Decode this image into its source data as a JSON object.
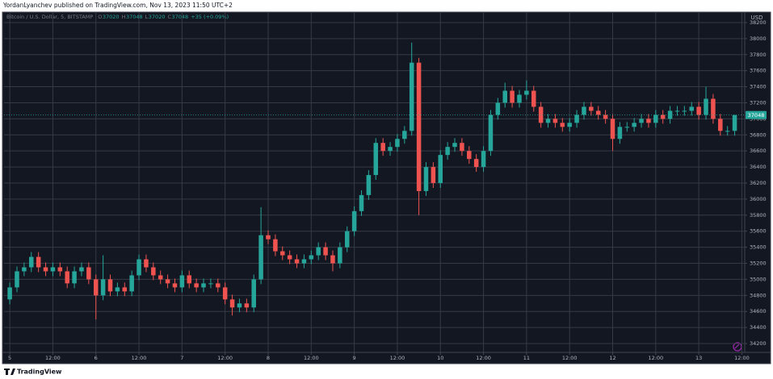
{
  "header": "YordanLyanchev published on TradingView.com, Nov 13, 2023 11:50 UTC+2",
  "footer": "TradingView",
  "chart_data": {
    "type": "candlestick",
    "title": "Bitcoin / U.S. Dollar, 5, BITSTAMP",
    "last_bar": {
      "labels": [
        "O",
        "H",
        "L",
        "C"
      ],
      "values": [
        37020,
        37048,
        37020,
        37048
      ],
      "change": "+35 (+0.09%)"
    },
    "y_axis_label": "USD",
    "up_color": "#26a69a",
    "down_color": "#ef5350",
    "grid": true,
    "xlim": [
      -1.6,
      204.8
    ],
    "xticks": [
      {
        "value": 0,
        "label": "5"
      },
      {
        "value": 12,
        "label": "12:00"
      },
      {
        "value": 24,
        "label": "6"
      },
      {
        "value": 36,
        "label": "12:00"
      },
      {
        "value": 48,
        "label": "7"
      },
      {
        "value": 60,
        "label": "12:00"
      },
      {
        "value": 72,
        "label": "8"
      },
      {
        "value": 84,
        "label": "12:00"
      },
      {
        "value": 96,
        "label": "9"
      },
      {
        "value": 108,
        "label": "12:00"
      },
      {
        "value": 120,
        "label": "10"
      },
      {
        "value": 132,
        "label": "12:00"
      },
      {
        "value": 144,
        "label": "11"
      },
      {
        "value": 156,
        "label": "12:00"
      },
      {
        "value": 168,
        "label": "12"
      },
      {
        "value": 180,
        "label": "12:00"
      },
      {
        "value": 192,
        "label": "13"
      },
      {
        "value": 204,
        "label": "12:00"
      }
    ],
    "ylim": [
      34090,
      38330
    ],
    "yticks": [
      34200,
      34400,
      34600,
      34800,
      35000,
      35200,
      35400,
      35600,
      35800,
      36000,
      36200,
      36400,
      36600,
      36800,
      37000,
      37200,
      37400,
      37600,
      37800,
      38000,
      38200
    ],
    "x": [
      0,
      2,
      4,
      6,
      8,
      10,
      12,
      14,
      16,
      18,
      20,
      22,
      24,
      26,
      28,
      30,
      32,
      34,
      36,
      38,
      40,
      42,
      44,
      46,
      48,
      50,
      52,
      54,
      56,
      58,
      60,
      62,
      64,
      66,
      68,
      70,
      72,
      74,
      76,
      78,
      80,
      82,
      84,
      86,
      88,
      90,
      92,
      94,
      96,
      98,
      100,
      102,
      104,
      106,
      108,
      110,
      112,
      114,
      116,
      118,
      120,
      122,
      124,
      126,
      128,
      130,
      132,
      134,
      136,
      138,
      140,
      142,
      144,
      146,
      148,
      150,
      152,
      154,
      156,
      158,
      160,
      162,
      164,
      166,
      168,
      170,
      172,
      174,
      176,
      178,
      180,
      182,
      184,
      186,
      188,
      190,
      192,
      194,
      196,
      198,
      200,
      202
    ],
    "open": [
      34750,
      34900,
      35100,
      35150,
      35280,
      35150,
      35100,
      35150,
      35100,
      34950,
      35100,
      35150,
      35000,
      34800,
      35000,
      34850,
      34900,
      34850,
      35050,
      35250,
      35150,
      35050,
      35000,
      34950,
      34900,
      35050,
      34950,
      34900,
      34950,
      34950,
      34900,
      34750,
      34650,
      34700,
      34650,
      35000,
      35550,
      35500,
      35350,
      35300,
      35250,
      35200,
      35250,
      35300,
      35400,
      35300,
      35200,
      35400,
      35600,
      35850,
      36050,
      36300,
      36700,
      36600,
      36650,
      36750,
      36850,
      37700,
      36100,
      36400,
      36200,
      36550,
      36650,
      36700,
      36600,
      36500,
      36400,
      36600,
      37050,
      37200,
      37350,
      37200,
      37300,
      37350,
      37150,
      36950,
      37000,
      36950,
      36900,
      36950,
      37050,
      37150,
      37100,
      37050,
      37000,
      36750,
      36900,
      36900,
      36950,
      37000,
      36950,
      37050,
      37000,
      37100,
      37100,
      37100,
      37150,
      37050,
      37250,
      37000,
      36850,
      36850
    ],
    "high": [
      34960,
      35160,
      35210,
      35340,
      35340,
      35210,
      35210,
      35210,
      35160,
      35160,
      35210,
      35210,
      35060,
      35300,
      35060,
      34960,
      34960,
      35110,
      35310,
      35310,
      35210,
      35110,
      35060,
      35010,
      35110,
      35110,
      35010,
      35010,
      35010,
      35010,
      34960,
      34810,
      34760,
      34760,
      35060,
      35900,
      35610,
      35560,
      35410,
      35360,
      35310,
      35310,
      35360,
      35460,
      35460,
      35360,
      35460,
      35660,
      35910,
      36110,
      36360,
      36760,
      36760,
      36710,
      36810,
      36910,
      37950,
      37760,
      36460,
      36460,
      36610,
      36710,
      36760,
      36760,
      36660,
      36560,
      36660,
      37110,
      37260,
      37450,
      37410,
      37360,
      37480,
      37410,
      37210,
      37060,
      37060,
      37010,
      37010,
      37110,
      37210,
      37210,
      37160,
      37110,
      37060,
      36960,
      36960,
      37010,
      37060,
      37060,
      37110,
      37110,
      37160,
      37160,
      37160,
      37210,
      37210,
      37400,
      37310,
      37060,
      36910,
      37048
    ],
    "low": [
      34690,
      34840,
      35040,
      35090,
      35090,
      35040,
      35040,
      35040,
      34890,
      34890,
      35040,
      34940,
      34500,
      34740,
      34790,
      34790,
      34790,
      34790,
      34990,
      35090,
      34990,
      34940,
      34890,
      34840,
      34840,
      34890,
      34840,
      34840,
      34890,
      34840,
      34690,
      34550,
      34590,
      34590,
      34590,
      34940,
      35440,
      35290,
      35240,
      35190,
      35140,
      35140,
      35190,
      35240,
      35240,
      35100,
      35140,
      35340,
      35540,
      35790,
      35990,
      36240,
      36540,
      36540,
      36590,
      36690,
      36790,
      35800,
      36040,
      36140,
      36140,
      36490,
      36590,
      36540,
      36440,
      36340,
      36340,
      36540,
      36990,
      37140,
      37140,
      37140,
      37240,
      37090,
      36890,
      36890,
      36890,
      36840,
      36840,
      36890,
      36990,
      37040,
      36990,
      36940,
      36600,
      36690,
      36840,
      36840,
      36890,
      36890,
      36890,
      36940,
      36940,
      37040,
      37040,
      37040,
      36990,
      36990,
      36940,
      36790,
      36790,
      36790
    ],
    "close": [
      34900,
      35100,
      35150,
      35280,
      35150,
      35100,
      35150,
      35100,
      34950,
      35100,
      35150,
      35000,
      34800,
      35000,
      34850,
      34900,
      34850,
      35050,
      35250,
      35150,
      35050,
      35000,
      34950,
      34900,
      35050,
      34950,
      34900,
      34950,
      34950,
      34900,
      34750,
      34650,
      34700,
      34650,
      35000,
      35550,
      35500,
      35350,
      35300,
      35250,
      35200,
      35250,
      35300,
      35400,
      35300,
      35200,
      35400,
      35600,
      35850,
      36050,
      36300,
      36700,
      36600,
      36650,
      36750,
      36850,
      37700,
      36100,
      36400,
      36200,
      36550,
      36650,
      36700,
      36600,
      36500,
      36400,
      36600,
      37050,
      37200,
      37350,
      37200,
      37300,
      37350,
      37150,
      36950,
      37000,
      36950,
      36900,
      36950,
      37050,
      37150,
      37100,
      37050,
      37000,
      36750,
      36900,
      36900,
      36950,
      37000,
      36950,
      37050,
      37000,
      37100,
      37100,
      37100,
      37150,
      37050,
      37250,
      37000,
      36850,
      36850,
      37048
    ]
  }
}
